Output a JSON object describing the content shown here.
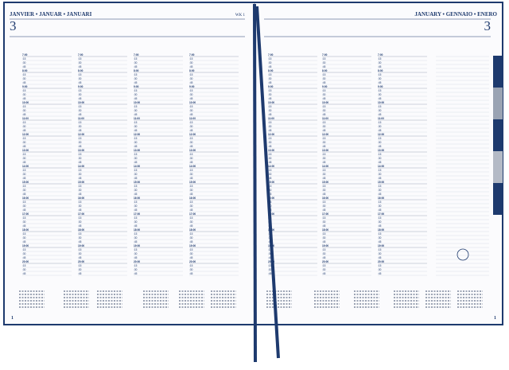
{
  "left_page": {
    "month": "JANVIER • JANUAR • JANUARI",
    "day": "3",
    "week": "WK 1",
    "page_number": "1"
  },
  "right_page": {
    "month": "JANUARY • GENNAIO • ENERO",
    "day": "3",
    "page_number": "1"
  },
  "schedule": {
    "hours": [
      "7:00",
      "8:00",
      "9:00",
      "10:00",
      "11:00",
      "12:00",
      "13:00",
      "14:00",
      "15:00",
      "16:00",
      "17:00",
      "18:00",
      "19:00",
      "20:00"
    ],
    "quarters": [
      ":15",
      ":30",
      ":45"
    ]
  }
}
